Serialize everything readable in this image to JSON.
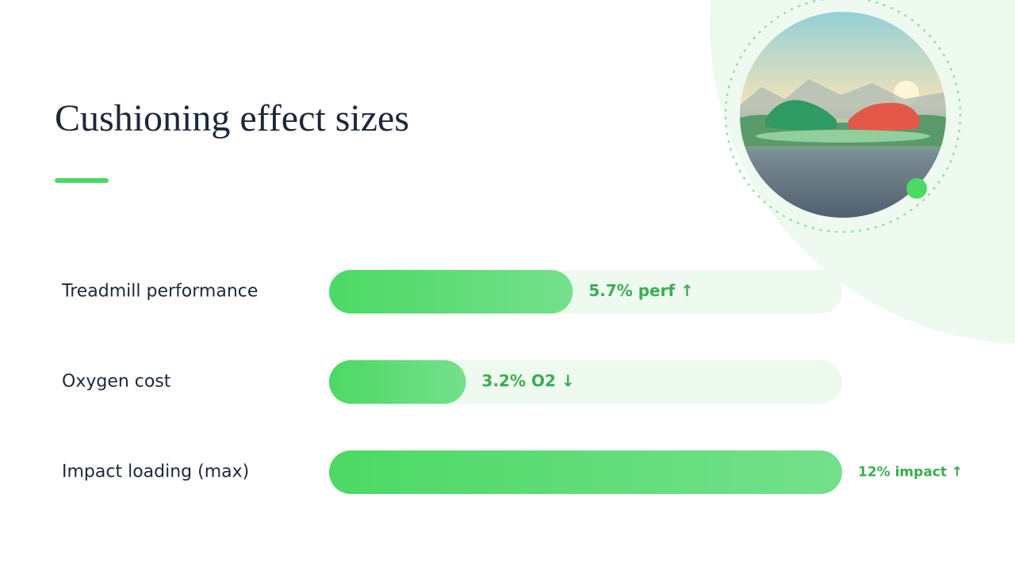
{
  "chart_data": {
    "type": "bar",
    "orientation": "horizontal",
    "title": "Cushioning effect sizes",
    "categories": [
      "Treadmill performance",
      "Oxygen cost",
      "Impact loading (max)"
    ],
    "values": [
      5.7,
      3.2,
      12
    ],
    "value_labels": [
      "5.7% perf ↑",
      "3.2% O2 ↓",
      "12% impact ↑"
    ],
    "color": "#4cd964",
    "xlim": [
      0,
      12
    ]
  }
}
